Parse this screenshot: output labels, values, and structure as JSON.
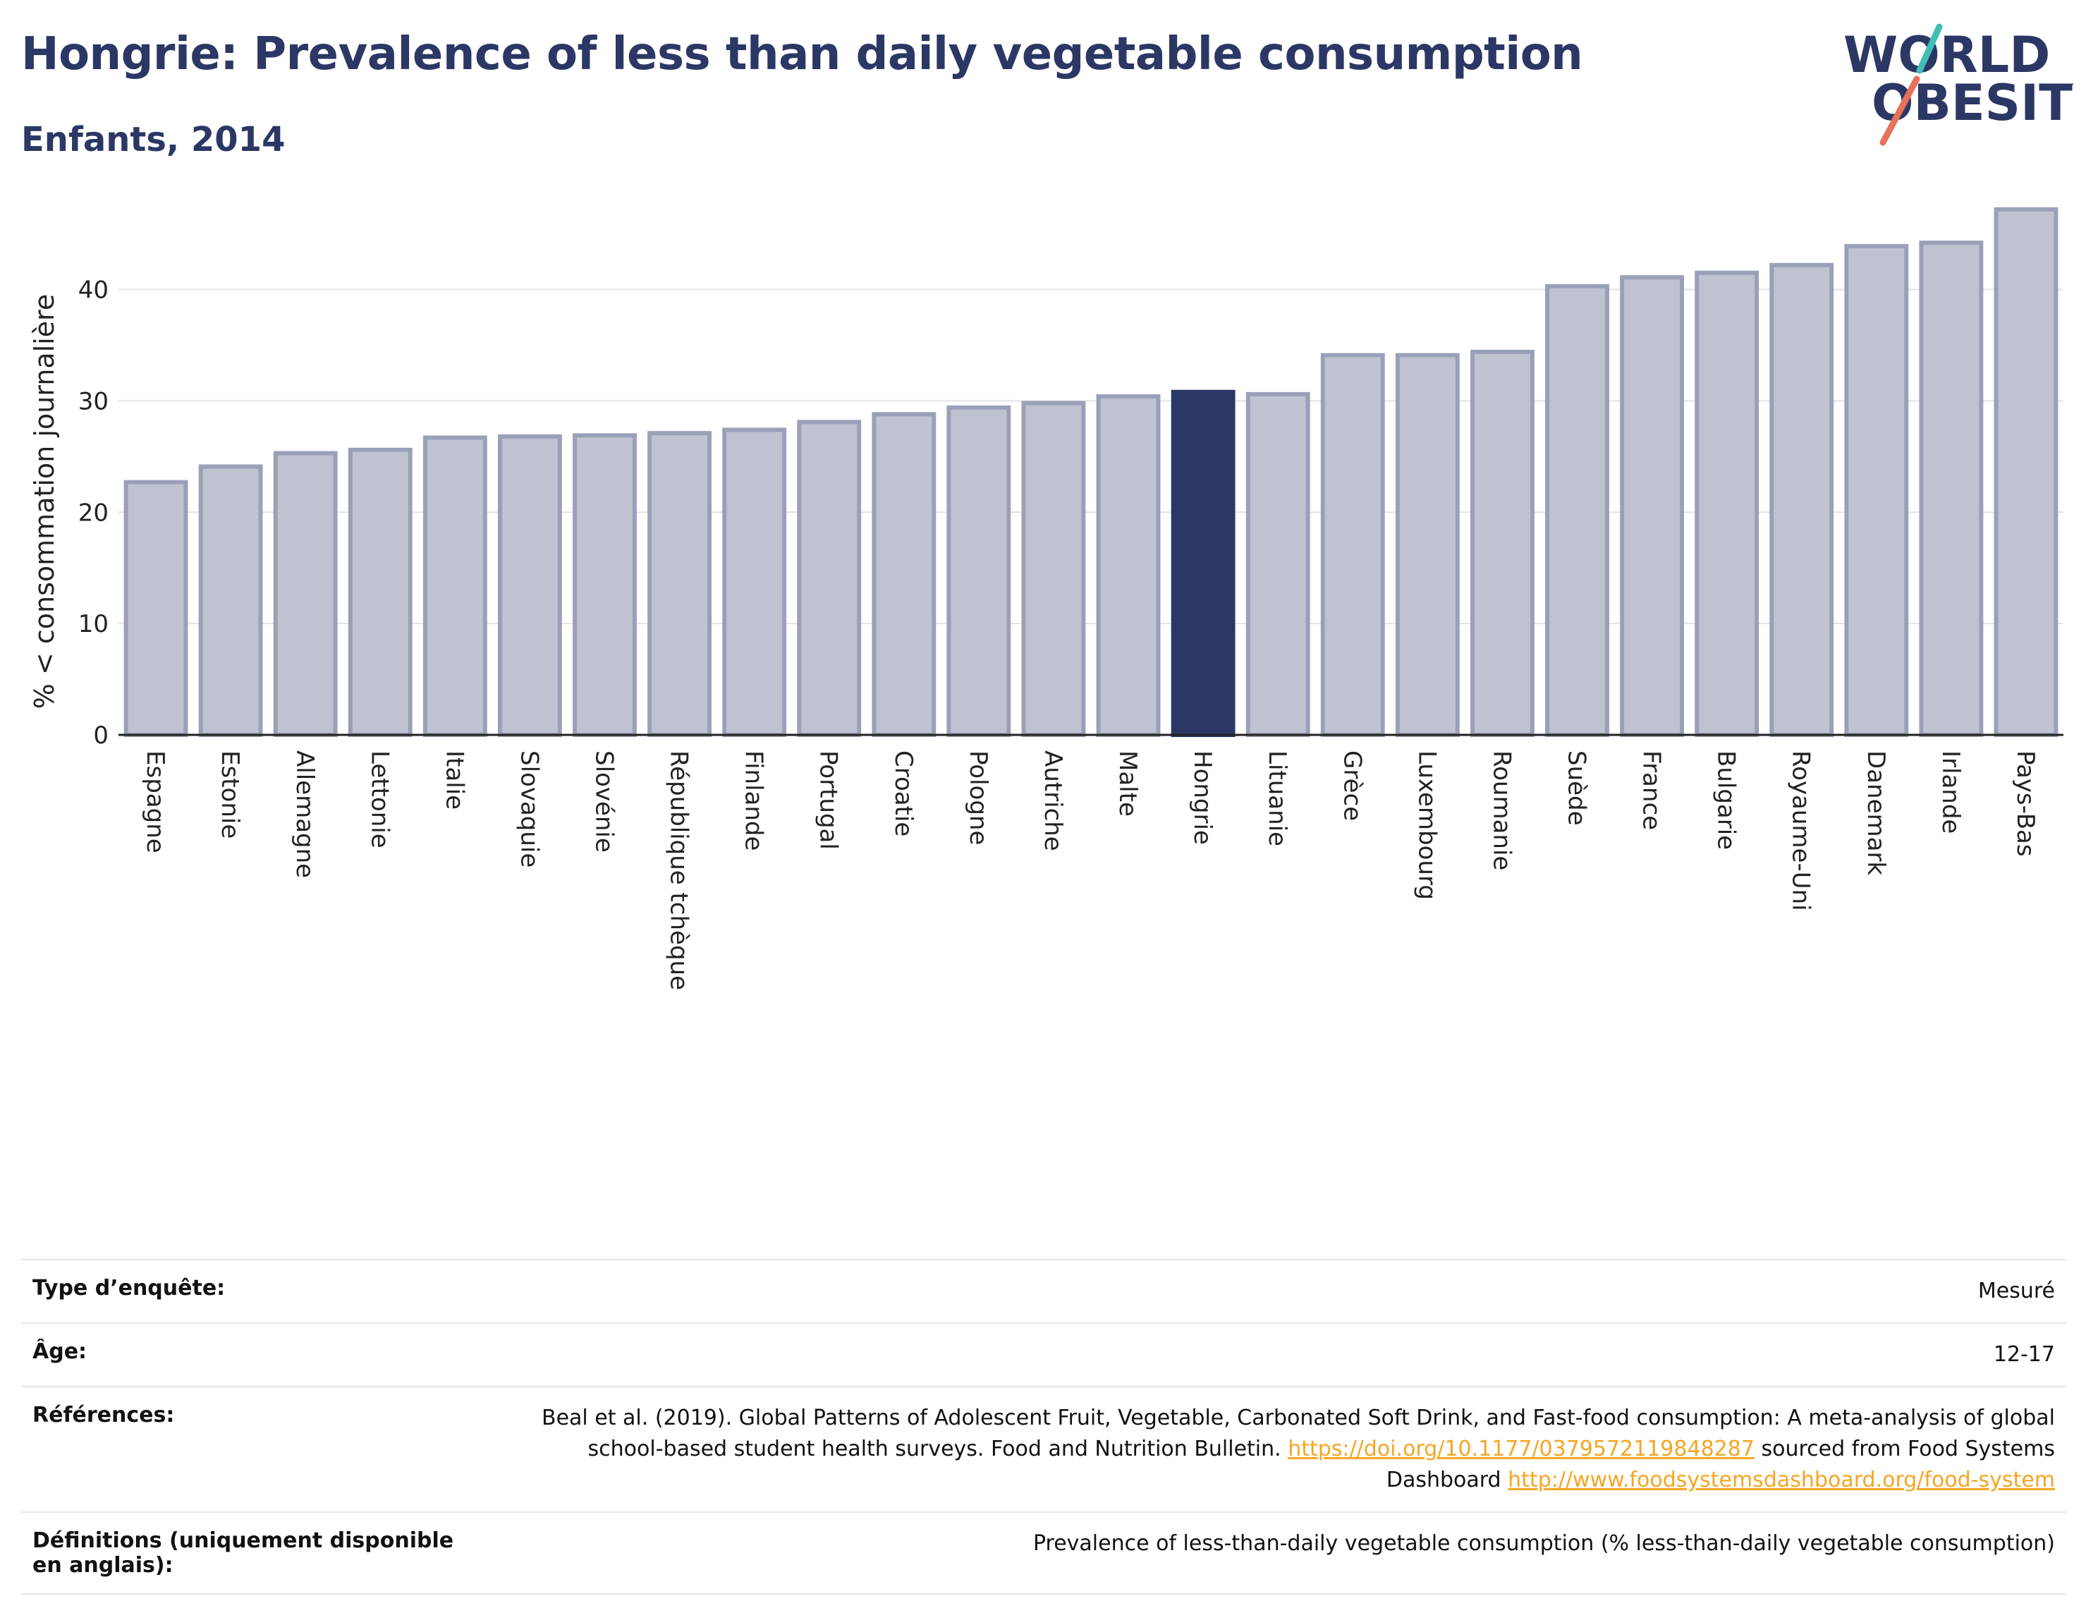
{
  "header": {
    "title": "Hongrie: Prevalence of less than daily vegetable consumption",
    "subtitle": "Enfants, 2014"
  },
  "logo": {
    "line1": "WORLD",
    "line2": "OBESITY"
  },
  "colors": {
    "bar": "#bfc3d1",
    "bar_border": "#9aa0b8",
    "highlight": "#2b3764",
    "grid": "#e3e3e3"
  },
  "chart_data": {
    "type": "bar",
    "title": "Hongrie: Prevalence of less than daily vegetable consumption",
    "subtitle": "Enfants, 2014",
    "xlabel": "",
    "ylabel": "% < consommation journalière",
    "ylim": [
      0,
      47
    ],
    "yticks": [
      0,
      10,
      20,
      30,
      40
    ],
    "grid": true,
    "highlight": "Hongrie",
    "categories": [
      "Espagne",
      "Estonie",
      "Allemagne",
      "Lettonie",
      "Italie",
      "Slovaquie",
      "Slovénie",
      "République tchèque",
      "Finlande",
      "Portugal",
      "Croatie",
      "Pologne",
      "Autriche",
      "Malte",
      "Hongrie",
      "Lituanie",
      "Grèce",
      "Luxembourg",
      "Roumanie",
      "Suède",
      "France",
      "Bulgarie",
      "Royaume-Uni",
      "Danemark",
      "Irlande",
      "Pays-Bas"
    ],
    "values": [
      22.7,
      24.1,
      25.3,
      25.6,
      26.7,
      26.8,
      26.9,
      27.1,
      27.4,
      28.1,
      28.8,
      29.4,
      29.8,
      30.4,
      30.8,
      30.6,
      34.1,
      34.1,
      34.4,
      40.3,
      41.1,
      41.5,
      42.2,
      43.9,
      44.2,
      47.2
    ]
  },
  "meta": [
    {
      "key": "Type d’enquête:",
      "value": "Mesuré"
    },
    {
      "key": "Âge:",
      "value": "12-17"
    },
    {
      "key": "Références:",
      "value": "Beal et al. (2019). Global Patterns of Adolescent Fruit, Vegetable, Carbonated Soft Drink, and Fast-food consumption: A meta-analysis of global school-based student health surveys. Food and Nutrition Bulletin.",
      "link1": "https://doi.org/10.1177/0379572119848287",
      "mid": "sourced from Food Systems Dashboard",
      "link2": "http://www.foodsystemsdashboard.org/food-system"
    },
    {
      "key": "Définitions (uniquement disponible en anglais):",
      "value": "Prevalence of less-than-daily vegetable consumption (% less-than-daily vegetable consumption)"
    }
  ]
}
